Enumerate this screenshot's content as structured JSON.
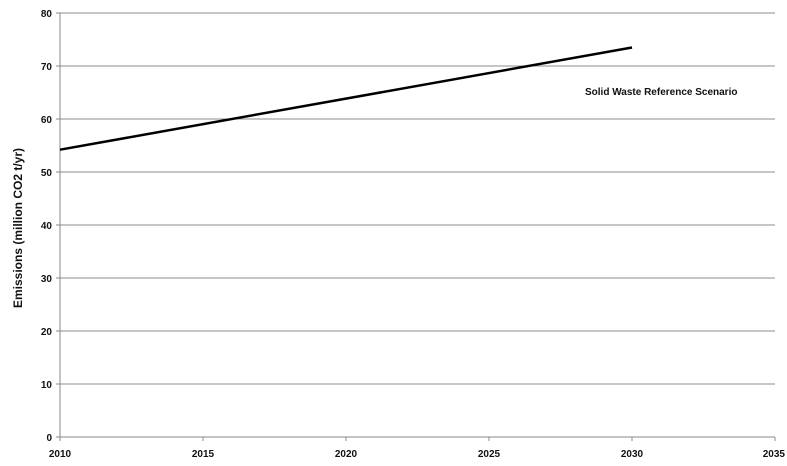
{
  "chart_data": {
    "type": "line",
    "title": "",
    "xlabel": "",
    "ylabel": "Emissions (million CO2 t/yr)",
    "xlim": [
      2010,
      2035
    ],
    "ylim": [
      0,
      80
    ],
    "x_ticks": [
      "2010",
      "2015",
      "2020",
      "2025",
      "2030",
      "2035"
    ],
    "y_ticks": [
      "0",
      "10",
      "20",
      "30",
      "40",
      "50",
      "60",
      "70",
      "80"
    ],
    "grid": "horizontal",
    "series": [
      {
        "name": "Solid Waste Reference Scenario",
        "color": "#000000",
        "x": [
          2010,
          2030
        ],
        "y": [
          54.2,
          73.5
        ]
      }
    ]
  }
}
